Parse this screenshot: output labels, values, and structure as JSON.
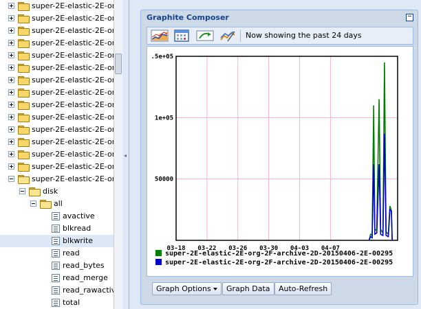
{
  "tree": {
    "collapsed_label": "super-2E-elastic-2E-org",
    "collapsed_count": 14,
    "expanded_label": "super-2E-elastic-2E-org",
    "disk_label": "disk",
    "all_label": "all",
    "leaves": [
      "avactive",
      "blkread",
      "blkwrite",
      "read",
      "read_bytes",
      "read_merge",
      "read_rawactiv",
      "total"
    ],
    "selected_leaf": "blkwrite"
  },
  "composer": {
    "title": "Graphite Composer",
    "status": "Now showing the past 24 days",
    "toolbar_icons": [
      "graph-type-icon",
      "calendar-icon",
      "recent-data-icon",
      "edit-graph-icon"
    ],
    "buttons": {
      "graph_options": "Graph Options",
      "graph_data": "Graph Data",
      "auto_refresh": "Auto-Refresh"
    }
  },
  "chart_data": {
    "type": "line",
    "x_ticks": [
      "03-18",
      "03-22",
      "03-26",
      "03-30",
      "04-03",
      "04-07"
    ],
    "y_ticks": [
      "50000",
      "1e+05",
      ".5e+05"
    ],
    "ylim": [
      0,
      150000
    ],
    "grid": true,
    "legend_position": "bottom",
    "series": [
      {
        "name": "super-2E-elastic-2E-org-2F-archive-2D-20150406-2E-00295",
        "color": "#008000",
        "points": [
          [
            25.0,
            0
          ],
          [
            25.2,
            5000
          ],
          [
            25.4,
            4000
          ],
          [
            25.6,
            110000
          ],
          [
            25.75,
            8000
          ],
          [
            26.0,
            9000
          ],
          [
            26.3,
            115000
          ],
          [
            26.5,
            9000
          ],
          [
            26.8,
            6000
          ],
          [
            27.0,
            145000
          ],
          [
            27.2,
            7000
          ],
          [
            27.5,
            5000
          ],
          [
            27.7,
            28000
          ],
          [
            27.9,
            24000
          ],
          [
            28.0,
            0
          ]
        ]
      },
      {
        "name": "super-2E-elastic-2E-org-2F-archive-2D-20150406-2E-00295",
        "color": "#0000cc",
        "points": [
          [
            25.0,
            0
          ],
          [
            25.2,
            3000
          ],
          [
            25.4,
            2000
          ],
          [
            25.6,
            62000
          ],
          [
            25.75,
            5000
          ],
          [
            26.0,
            6000
          ],
          [
            26.3,
            62000
          ],
          [
            26.5,
            5000
          ],
          [
            26.8,
            4000
          ],
          [
            27.0,
            87000
          ],
          [
            27.2,
            4000
          ],
          [
            27.5,
            3000
          ],
          [
            27.7,
            25000
          ],
          [
            27.9,
            24000
          ],
          [
            28.0,
            0
          ]
        ]
      }
    ]
  }
}
